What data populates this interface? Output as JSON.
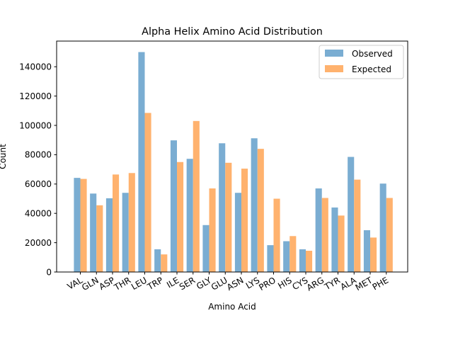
{
  "chart_data": {
    "type": "bar",
    "title": "Alpha Helix Amino Acid Distribution",
    "xlabel": "Amino Acid",
    "ylabel": "Count",
    "categories": [
      "VAL",
      "GLN",
      "ASP",
      "THR",
      "LEU",
      "TRP",
      "ILE",
      "SER",
      "GLY",
      "GLU",
      "ASN",
      "LYS",
      "PRO",
      "HIS",
      "CYS",
      "ARG",
      "TYR",
      "ALA",
      "MET",
      "PHE"
    ],
    "series": [
      {
        "name": "Observed",
        "color": "#7aadd2",
        "values": [
          64200,
          53500,
          50300,
          54000,
          150000,
          15500,
          89800,
          77200,
          32000,
          87800,
          54000,
          91200,
          18300,
          21000,
          15500,
          57000,
          44000,
          78500,
          28500,
          60300
        ]
      },
      {
        "name": "Expected",
        "color": "#ffb26e",
        "values": [
          63500,
          45500,
          66500,
          67500,
          108500,
          12000,
          75000,
          103000,
          57000,
          74500,
          70500,
          84000,
          50000,
          24500,
          14500,
          50500,
          38500,
          63000,
          23500,
          50500
        ]
      }
    ],
    "ylim": [
      0,
      157500
    ],
    "yticks": [
      0,
      20000,
      40000,
      60000,
      80000,
      100000,
      120000,
      140000
    ],
    "ytick_labels": [
      "0",
      "20000",
      "40000",
      "60000",
      "80000",
      "100000",
      "120000",
      "140000"
    ],
    "grid": false,
    "legend": "top-right"
  }
}
